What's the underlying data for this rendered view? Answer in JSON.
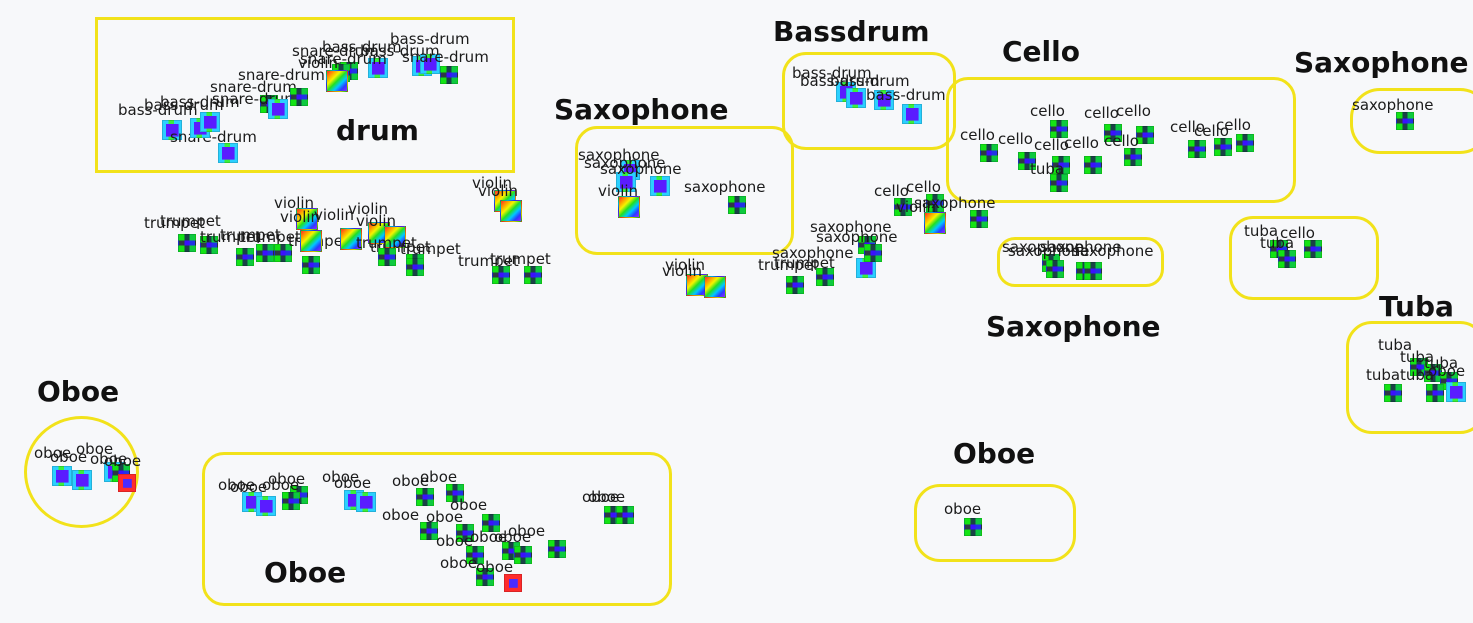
{
  "colors": {
    "background": "#f7f8fa",
    "box_border": "#f2e21a",
    "title_text": "#111111",
    "label_text": "#1b1b1b"
  },
  "clusters": [
    {
      "id": "drum",
      "title": "drum"
    },
    {
      "id": "bassdrum",
      "title": "Bassdrum"
    },
    {
      "id": "cello",
      "title": "Cello"
    },
    {
      "id": "saxophone-mid",
      "title": "Saxophone"
    },
    {
      "id": "saxophone-right",
      "title": "Saxophone"
    },
    {
      "id": "saxophone-low",
      "title": "Saxophone"
    },
    {
      "id": "tuba",
      "title": "Tuba"
    },
    {
      "id": "oboe-left",
      "title": "Oboe"
    },
    {
      "id": "oboe-bottom",
      "title": "Oboe"
    },
    {
      "id": "oboe-right",
      "title": "Oboe"
    },
    {
      "id": "cello-tuba",
      "title": ""
    }
  ],
  "points": [
    {
      "label": "bass-drum",
      "style": "blue"
    },
    {
      "label": "snare-drum",
      "style": "blue"
    },
    {
      "label": "snare-drum",
      "style": "grid"
    },
    {
      "label": "snare-drum",
      "style": "blue"
    },
    {
      "label": "snare-drum",
      "style": "grid"
    },
    {
      "label": "bass-drum",
      "style": "blue"
    },
    {
      "label": "bass-drum",
      "style": "blue"
    },
    {
      "label": "snare-drum",
      "style": "grid"
    },
    {
      "label": "bass-drum",
      "style": "blue"
    },
    {
      "label": "snare-drum",
      "style": "grid"
    },
    {
      "label": "violin",
      "style": "rainbow"
    },
    {
      "label": "bass-drum",
      "style": "blue"
    },
    {
      "label": "bass-drum",
      "style": "blue"
    },
    {
      "label": "snare-drum",
      "style": "grid"
    },
    {
      "label": "trumpet",
      "style": "grid"
    },
    {
      "label": "trumpet",
      "style": "grid"
    },
    {
      "label": "trumpet",
      "style": "grid"
    },
    {
      "label": "trumpet",
      "style": "grid"
    },
    {
      "label": "trumpet",
      "style": "grid"
    },
    {
      "label": "trumpet",
      "style": "grid"
    },
    {
      "label": "trumpet",
      "style": "grid"
    },
    {
      "label": "violin",
      "style": "rainbow"
    },
    {
      "label": "violin",
      "style": "rainbow"
    },
    {
      "label": "violin",
      "style": "rainbow"
    },
    {
      "label": "violin",
      "style": "rainbow"
    },
    {
      "label": "violin",
      "style": "rainbow"
    },
    {
      "label": "trumpet",
      "style": "grid"
    },
    {
      "label": "trumpet",
      "style": "grid"
    },
    {
      "label": "violin",
      "style": "rainbow"
    },
    {
      "label": "violin",
      "style": "rainbow"
    },
    {
      "label": "trumpet",
      "style": "grid"
    },
    {
      "label": "trumpet",
      "style": "grid"
    },
    {
      "label": "violin",
      "style": "rainbow"
    },
    {
      "label": "violin",
      "style": "rainbow"
    },
    {
      "label": "saxophone",
      "style": "blue"
    },
    {
      "label": "saxophone",
      "style": "blue"
    },
    {
      "label": "saxophone",
      "style": "blue"
    },
    {
      "label": "violin",
      "style": "rainbow"
    },
    {
      "label": "saxophone",
      "style": "grid"
    },
    {
      "label": "bass-drum",
      "style": "blue"
    },
    {
      "label": "bass-drum",
      "style": "blue"
    },
    {
      "label": "bass-drum",
      "style": "blue"
    },
    {
      "label": "bass-drum",
      "style": "blue"
    },
    {
      "label": "trumpet",
      "style": "grid"
    },
    {
      "label": "trumpet",
      "style": "grid"
    },
    {
      "label": "saxophone",
      "style": "blue"
    },
    {
      "label": "saxophone",
      "style": "grid"
    },
    {
      "label": "saxophone",
      "style": "grid"
    },
    {
      "label": "cello",
      "style": "grid"
    },
    {
      "label": "cello",
      "style": "grid"
    },
    {
      "label": "violin",
      "style": "rainbow"
    },
    {
      "label": "saxophone",
      "style": "grid"
    },
    {
      "label": "cello",
      "style": "grid"
    },
    {
      "label": "cello",
      "style": "grid"
    },
    {
      "label": "cello",
      "style": "grid"
    },
    {
      "label": "cello",
      "style": "grid"
    },
    {
      "label": "cello",
      "style": "grid"
    },
    {
      "label": "cello",
      "style": "grid"
    },
    {
      "label": "cello",
      "style": "grid"
    },
    {
      "label": "tuba",
      "style": "grid"
    },
    {
      "label": "cello",
      "style": "grid"
    },
    {
      "label": "cello",
      "style": "grid"
    },
    {
      "label": "cello",
      "style": "grid"
    },
    {
      "label": "cello",
      "style": "grid"
    },
    {
      "label": "saxophone",
      "style": "grid"
    },
    {
      "label": "saxophone",
      "style": "grid"
    },
    {
      "label": "saxophone",
      "style": "grid"
    },
    {
      "label": "saxophone",
      "style": "grid"
    },
    {
      "label": "saxophone",
      "style": "grid"
    },
    {
      "label": "tuba",
      "style": "grid"
    },
    {
      "label": "cello",
      "style": "grid"
    },
    {
      "label": "tuba",
      "style": "grid"
    },
    {
      "label": "tuba",
      "style": "grid"
    },
    {
      "label": "tuba",
      "style": "grid"
    },
    {
      "label": "tuba",
      "style": "grid"
    },
    {
      "label": "tuba",
      "style": "grid"
    },
    {
      "label": "tuba",
      "style": "grid"
    },
    {
      "label": "oboe",
      "style": "blue"
    },
    {
      "label": "oboe",
      "style": "blue"
    },
    {
      "label": "oboe",
      "style": "blue"
    },
    {
      "label": "oboe",
      "style": "blue"
    },
    {
      "label": "oboe",
      "style": "grid"
    },
    {
      "label": "oboe",
      "style": "red"
    },
    {
      "label": "oboe",
      "style": "blue"
    },
    {
      "label": "oboe",
      "style": "blue"
    },
    {
      "label": "oboe",
      "style": "grid"
    },
    {
      "label": "oboe",
      "style": "grid"
    },
    {
      "label": "oboe",
      "style": "blue"
    },
    {
      "label": "oboe",
      "style": "blue"
    },
    {
      "label": "oboe",
      "style": "grid"
    },
    {
      "label": "oboe",
      "style": "grid"
    },
    {
      "label": "oboe",
      "style": "grid"
    },
    {
      "label": "oboe",
      "style": "grid"
    },
    {
      "label": "oboe",
      "style": "grid"
    },
    {
      "label": "oboe",
      "style": "grid"
    },
    {
      "label": "oboe",
      "style": "grid"
    },
    {
      "label": "oboe",
      "style": "grid"
    },
    {
      "label": "oboe",
      "style": "grid"
    },
    {
      "label": "oboe",
      "style": "grid"
    },
    {
      "label": "oboe",
      "style": "red"
    },
    {
      "label": "oboe",
      "style": "grid"
    },
    {
      "label": "oboe",
      "style": "grid"
    },
    {
      "label": "oboe",
      "style": "grid"
    }
  ]
}
